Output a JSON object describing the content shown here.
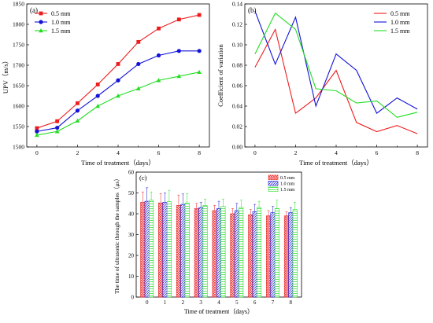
{
  "chart_data": [
    {
      "type": "line",
      "panel_label": "(a)",
      "xlabel": "Time of treatment（days）",
      "ylabel": "UPV（m/s）",
      "xlim": [
        -0.5,
        8.5
      ],
      "ylim": [
        1500,
        1850
      ],
      "x": [
        0,
        1,
        2,
        3,
        4,
        5,
        6,
        7,
        8
      ],
      "xticks": [
        "0",
        "2",
        "4",
        "6",
        "8"
      ],
      "yticks": [
        "1500",
        "1550",
        "1600",
        "1650",
        "1700",
        "1750",
        "1800",
        "1850"
      ],
      "legend_position": "top-left",
      "grid": false,
      "series": [
        {
          "name": "0.5 mm",
          "color": "#ee1c1c",
          "marker": "square",
          "values": [
            1546,
            1563,
            1607,
            1653,
            1703,
            1757,
            1790,
            1812,
            1823
          ]
        },
        {
          "name": "1.0 mm",
          "color": "#1212d8",
          "marker": "circle",
          "values": [
            1538,
            1547,
            1589,
            1625,
            1663,
            1703,
            1724,
            1735,
            1735
          ]
        },
        {
          "name": "1.5 mm",
          "color": "#22dd22",
          "marker": "triangle",
          "values": [
            1529,
            1538,
            1564,
            1600,
            1625,
            1643,
            1663,
            1673,
            1683
          ]
        }
      ]
    },
    {
      "type": "line",
      "panel_label": "(b)",
      "xlabel": "Time of treatment（days）",
      "ylabel": "Coefficient of variation",
      "xlim": [
        -0.5,
        8.5
      ],
      "ylim": [
        0,
        0.14
      ],
      "x": [
        0,
        1,
        2,
        3,
        4,
        5,
        6,
        7,
        8
      ],
      "xticks": [
        "0",
        "2",
        "4",
        "6",
        "8"
      ],
      "yticks": [
        "0.00",
        "0.02",
        "0.04",
        "0.06",
        "0.08",
        "0.10",
        "0.12",
        "0.14"
      ],
      "legend_position": "top-right",
      "grid": false,
      "series": [
        {
          "name": "0.5 mm",
          "color": "#ee1c1c",
          "values": [
            0.078,
            0.115,
            0.033,
            0.048,
            0.075,
            0.024,
            0.015,
            0.021,
            0.013
          ]
        },
        {
          "name": "1.0 mm",
          "color": "#1212d8",
          "values": [
            0.133,
            0.081,
            0.127,
            0.04,
            0.091,
            0.075,
            0.033,
            0.048,
            0.037
          ]
        },
        {
          "name": "1.5 mm",
          "color": "#22dd22",
          "values": [
            0.091,
            0.131,
            0.115,
            0.057,
            0.055,
            0.043,
            0.045,
            0.029,
            0.034
          ]
        }
      ]
    },
    {
      "type": "bar",
      "panel_label": "(c)",
      "xlabel": "Time of treatment（days）",
      "ylabel": "The time of ultrasonic  through the samples（μs）",
      "ylim": [
        0,
        60
      ],
      "categories": [
        "0",
        "1",
        "2",
        "3",
        "4",
        "5",
        "6",
        "7",
        "8"
      ],
      "yticks": [
        "0",
        "10",
        "20",
        "30",
        "40",
        "50",
        "60"
      ],
      "legend_position": "top-right",
      "grid": false,
      "series": [
        {
          "name": "0.5 mm",
          "color": "#ee1c1c",
          "pattern": "cross",
          "values": [
            45.5,
            45.2,
            44.0,
            42.5,
            41.5,
            40.0,
            39.5,
            39.0,
            39.0
          ],
          "errors": [
            5.0,
            4.5,
            5.0,
            2.5,
            2.5,
            2.5,
            2.5,
            2.5,
            2.0
          ]
        },
        {
          "name": "1.0 mm",
          "color": "#1212d8",
          "pattern": "diagonal",
          "values": [
            46.0,
            45.5,
            44.5,
            43.0,
            42.5,
            41.5,
            41.0,
            40.5,
            40.5
          ],
          "errors": [
            6.5,
            4.5,
            5.0,
            2.5,
            3.5,
            3.5,
            3.5,
            3.0,
            2.5
          ]
        },
        {
          "name": "1.5 mm",
          "color": "#22dd22",
          "pattern": "hatch",
          "values": [
            46.5,
            45.8,
            45.2,
            44.0,
            43.5,
            43.0,
            43.0,
            42.5,
            42.0
          ],
          "errors": [
            4.0,
            5.5,
            4.5,
            3.0,
            3.5,
            3.5,
            3.0,
            4.0,
            3.5
          ]
        }
      ]
    }
  ]
}
